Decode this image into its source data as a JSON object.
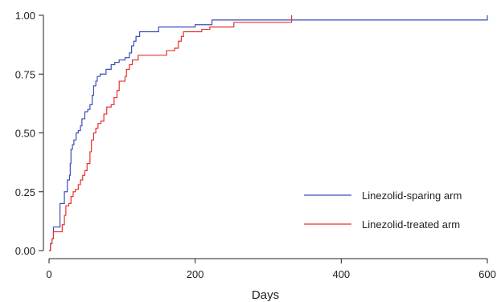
{
  "chart_data": {
    "type": "line",
    "title": "",
    "xlabel": "Days",
    "ylabel": "",
    "xlim": [
      -5,
      610
    ],
    "ylim": [
      -0.02,
      1.05
    ],
    "x_ticks": [
      0,
      200,
      400,
      600
    ],
    "x_tick_labels": [
      "0",
      "200",
      "400",
      "600"
    ],
    "y_ticks": [
      0,
      0.25,
      0.5,
      0.75,
      1.0
    ],
    "y_tick_labels": [
      "0.00",
      "0.25",
      "0.50",
      "0.75",
      "1.00"
    ],
    "legend_position": "right",
    "series": [
      {
        "name": "Linezolid-sparing arm",
        "color": "#3b4fb8",
        "step": true,
        "points": [
          [
            0,
            0
          ],
          [
            2,
            0.03
          ],
          [
            4,
            0.05
          ],
          [
            6,
            0.1
          ],
          [
            14,
            0.1
          ],
          [
            15,
            0.2
          ],
          [
            20,
            0.2
          ],
          [
            21,
            0.25
          ],
          [
            24,
            0.25
          ],
          [
            25,
            0.3
          ],
          [
            28,
            0.32
          ],
          [
            29,
            0.37
          ],
          [
            30,
            0.43
          ],
          [
            32,
            0.45
          ],
          [
            34,
            0.47
          ],
          [
            37,
            0.5
          ],
          [
            40,
            0.51
          ],
          [
            43,
            0.53
          ],
          [
            45,
            0.56
          ],
          [
            49,
            0.59
          ],
          [
            53,
            0.6
          ],
          [
            56,
            0.62
          ],
          [
            59,
            0.66
          ],
          [
            61,
            0.7
          ],
          [
            64,
            0.72
          ],
          [
            66,
            0.74
          ],
          [
            70,
            0.75
          ],
          [
            78,
            0.77
          ],
          [
            85,
            0.79
          ],
          [
            90,
            0.8
          ],
          [
            96,
            0.81
          ],
          [
            104,
            0.82
          ],
          [
            110,
            0.84
          ],
          [
            113,
            0.87
          ],
          [
            116,
            0.89
          ],
          [
            119,
            0.91
          ],
          [
            124,
            0.93
          ],
          [
            150,
            0.95
          ],
          [
            200,
            0.96
          ],
          [
            223,
            0.98
          ],
          [
            600,
            0.98
          ],
          [
            600,
            1.0
          ]
        ]
      },
      {
        "name": "Linezolid-treated arm",
        "color": "#e8322c",
        "step": true,
        "points": [
          [
            0,
            0
          ],
          [
            2,
            0.03
          ],
          [
            4,
            0.05
          ],
          [
            6,
            0.08
          ],
          [
            17,
            0.08
          ],
          [
            18,
            0.11
          ],
          [
            21,
            0.15
          ],
          [
            23,
            0.19
          ],
          [
            27,
            0.2
          ],
          [
            30,
            0.23
          ],
          [
            33,
            0.25
          ],
          [
            36,
            0.26
          ],
          [
            40,
            0.28
          ],
          [
            43,
            0.3
          ],
          [
            46,
            0.32
          ],
          [
            49,
            0.34
          ],
          [
            52,
            0.37
          ],
          [
            56,
            0.42
          ],
          [
            58,
            0.47
          ],
          [
            61,
            0.5
          ],
          [
            64,
            0.52
          ],
          [
            67,
            0.54
          ],
          [
            71,
            0.55
          ],
          [
            75,
            0.58
          ],
          [
            79,
            0.61
          ],
          [
            85,
            0.62
          ],
          [
            89,
            0.65
          ],
          [
            93,
            0.68
          ],
          [
            96,
            0.72
          ],
          [
            104,
            0.74
          ],
          [
            106,
            0.77
          ],
          [
            110,
            0.79
          ],
          [
            114,
            0.81
          ],
          [
            122,
            0.83
          ],
          [
            161,
            0.85
          ],
          [
            172,
            0.86
          ],
          [
            177,
            0.89
          ],
          [
            181,
            0.91
          ],
          [
            184,
            0.93
          ],
          [
            209,
            0.94
          ],
          [
            220,
            0.95
          ],
          [
            253,
            0.97
          ],
          [
            332,
            0.97
          ],
          [
            332,
            1.0
          ]
        ]
      }
    ]
  }
}
